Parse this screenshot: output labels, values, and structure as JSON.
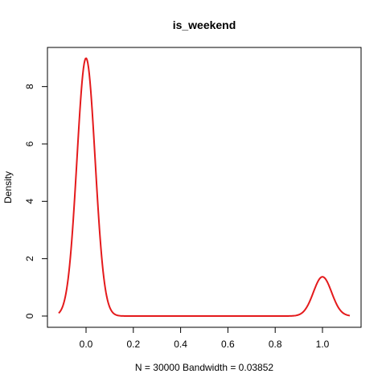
{
  "chart_data": {
    "type": "line",
    "title": "is_weekend",
    "xlabel": "N = 30000   Bandwidth = 0.03852",
    "ylabel": "Density",
    "xlim": [
      -0.1156,
      1.1156
    ],
    "ylim": [
      0,
      9.0
    ],
    "x_ticks": [
      0.0,
      0.2,
      0.4,
      0.6,
      0.8,
      1.0
    ],
    "x_tick_labels": [
      "0.0",
      "0.2",
      "0.4",
      "0.6",
      "0.8",
      "1.0"
    ],
    "y_ticks": [
      0,
      2,
      4,
      6,
      8
    ],
    "y_tick_labels": [
      "0",
      "2",
      "4",
      "6",
      "8"
    ],
    "grid": false,
    "series": [
      {
        "color": "#e41a1c",
        "kde": {
          "bandwidth": 0.03852,
          "components": [
            {
              "center": 0.0,
              "weight": 0.868
            },
            {
              "center": 1.0,
              "weight": 0.132
            }
          ]
        }
      }
    ]
  }
}
